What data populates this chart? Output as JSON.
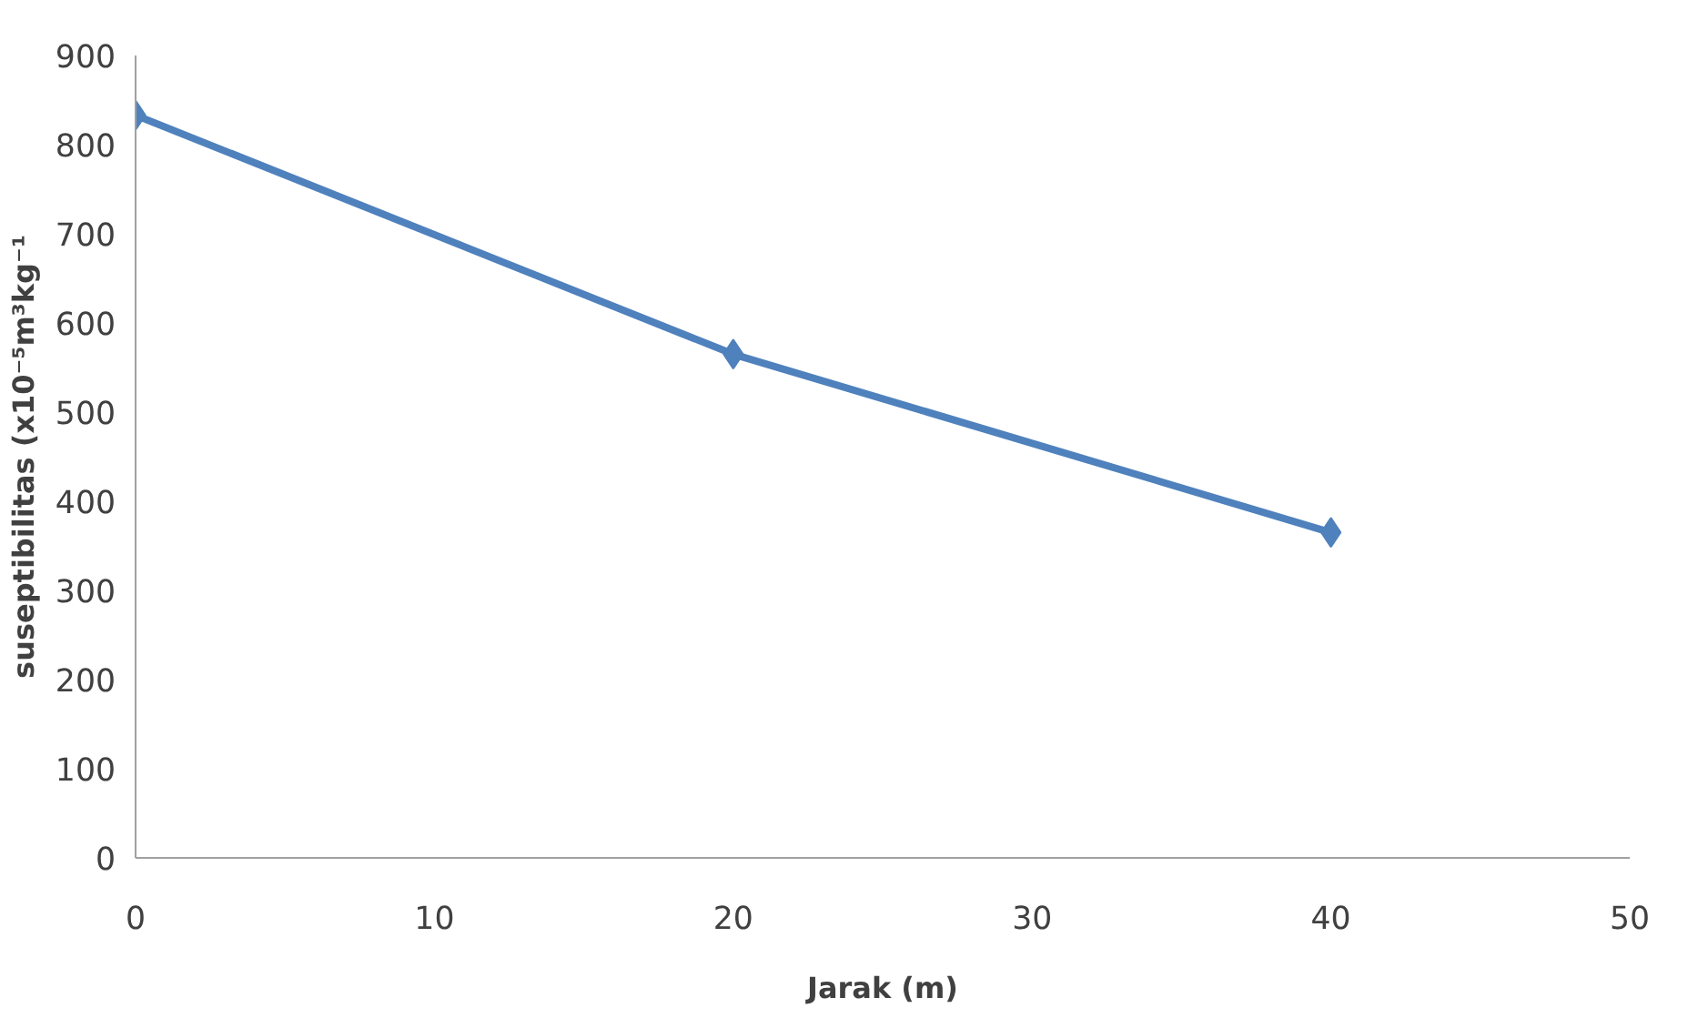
{
  "chart_data": {
    "type": "line",
    "xlabel": "Jarak (m)",
    "ylabel": "suseptibilitas (x10⁻⁵m³kg⁻¹",
    "x": [
      0,
      20,
      40
    ],
    "series": [
      {
        "color": "#4f81bd",
        "values": [
          833,
          565,
          365
        ]
      }
    ],
    "xlim": [
      0,
      50
    ],
    "xticks": [
      0,
      10,
      20,
      30,
      40,
      50
    ],
    "ylim": [
      0,
      900
    ],
    "yticks": [
      0,
      100,
      200,
      300,
      400,
      500,
      600,
      700,
      800,
      900
    ],
    "grid": false,
    "marker": "diamond",
    "line_style": "solid"
  }
}
